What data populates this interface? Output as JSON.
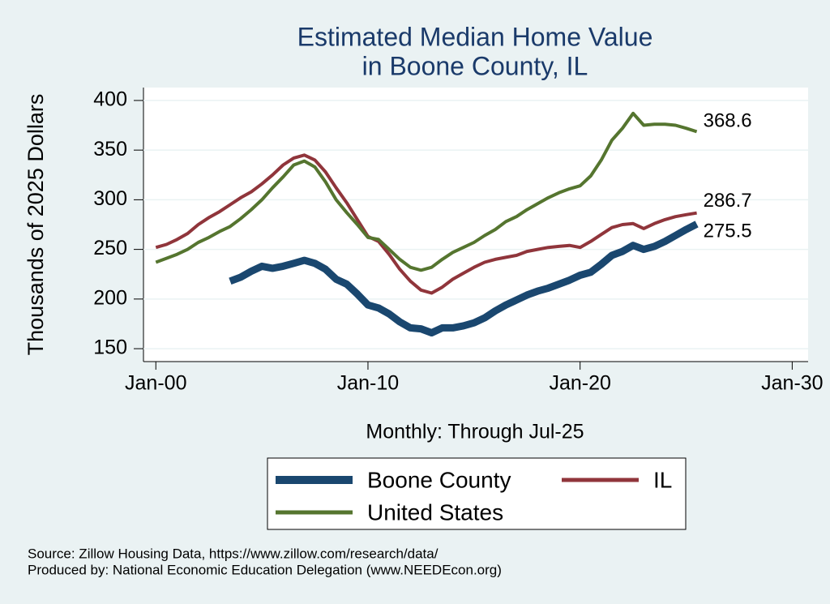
{
  "chart_data": {
    "type": "line",
    "title": [
      "Estimated Median Home Value",
      "in Boone County, IL"
    ],
    "x_label": "Monthly: Through Jul-25",
    "y_label": "Thousands of 2025 Dollars",
    "notes": [
      "Source: Zillow Housing Data, https://www.zillow.com/research/data/",
      "Produced by: National Economic Education Delegation (www.NEEDEcon.org)"
    ],
    "x": [
      "Jan-00",
      "Jul-00",
      "Jan-01",
      "Jul-01",
      "Jan-02",
      "Jul-02",
      "Jan-03",
      "Jul-03",
      "Jan-04",
      "Jul-04",
      "Jan-05",
      "Jul-05",
      "Jan-06",
      "Jul-06",
      "Jan-07",
      "Jul-07",
      "Jan-08",
      "Jul-08",
      "Jan-09",
      "Jul-09",
      "Jan-10",
      "Jul-10",
      "Jan-11",
      "Jul-11",
      "Jan-12",
      "Jul-12",
      "Jan-13",
      "Jul-13",
      "Jan-14",
      "Jul-14",
      "Jan-15",
      "Jul-15",
      "Jan-16",
      "Jul-16",
      "Jan-17",
      "Jul-17",
      "Jan-18",
      "Jul-18",
      "Jan-19",
      "Jul-19",
      "Jan-20",
      "Jul-20",
      "Jan-21",
      "Jul-21",
      "Jan-22",
      "Jul-22",
      "Jan-23",
      "Jul-23",
      "Jan-24",
      "Jul-24",
      "Jan-25",
      "Jul-25"
    ],
    "series": [
      {
        "name": "Boone County",
        "color": "#1a476f",
        "width": 9,
        "values": [
          null,
          null,
          null,
          null,
          null,
          null,
          null,
          218,
          222,
          228,
          233,
          231,
          233,
          236,
          239,
          236,
          230,
          220,
          215,
          205,
          194,
          191,
          185,
          177,
          171,
          170,
          166,
          171,
          171,
          173,
          176,
          181,
          188,
          194,
          199,
          204,
          208,
          211,
          215,
          219,
          224,
          227,
          235,
          244,
          248,
          254,
          250,
          253,
          258,
          264,
          270,
          275.5
        ]
      },
      {
        "name": "IL",
        "color": "#90353b",
        "width": 4,
        "values": [
          252,
          255,
          260,
          266,
          275,
          282,
          288,
          295,
          302,
          308,
          316,
          325,
          335,
          342,
          345,
          340,
          328,
          312,
          297,
          280,
          263,
          258,
          245,
          230,
          218,
          209,
          206,
          212,
          220,
          226,
          232,
          237,
          240,
          242,
          244,
          248,
          250,
          252,
          253,
          254,
          252,
          258,
          265,
          272,
          275,
          276,
          271,
          276,
          280,
          283,
          285,
          286.7
        ]
      },
      {
        "name": "United States",
        "color": "#55752f",
        "width": 4,
        "values": [
          237,
          241,
          245,
          250,
          257,
          262,
          268,
          273,
          281,
          290,
          300,
          312,
          323,
          335,
          339,
          333,
          318,
          300,
          287,
          275,
          262,
          260,
          250,
          240,
          232,
          229,
          232,
          240,
          247,
          252,
          257,
          264,
          270,
          278,
          283,
          290,
          296,
          302,
          307,
          311,
          314,
          324,
          340,
          360,
          372,
          387,
          375,
          376,
          376,
          375,
          372,
          368.6
        ]
      }
    ],
    "xlim": [
      "Jun-99",
      "Oct-30"
    ],
    "xticks": [
      "Jan-00",
      "Jan-10",
      "Jan-20",
      "Jan-30"
    ],
    "ylim": [
      137,
      413
    ],
    "yticks": [
      150,
      200,
      250,
      300,
      350,
      400
    ],
    "grid": true,
    "legend": "bottom"
  }
}
